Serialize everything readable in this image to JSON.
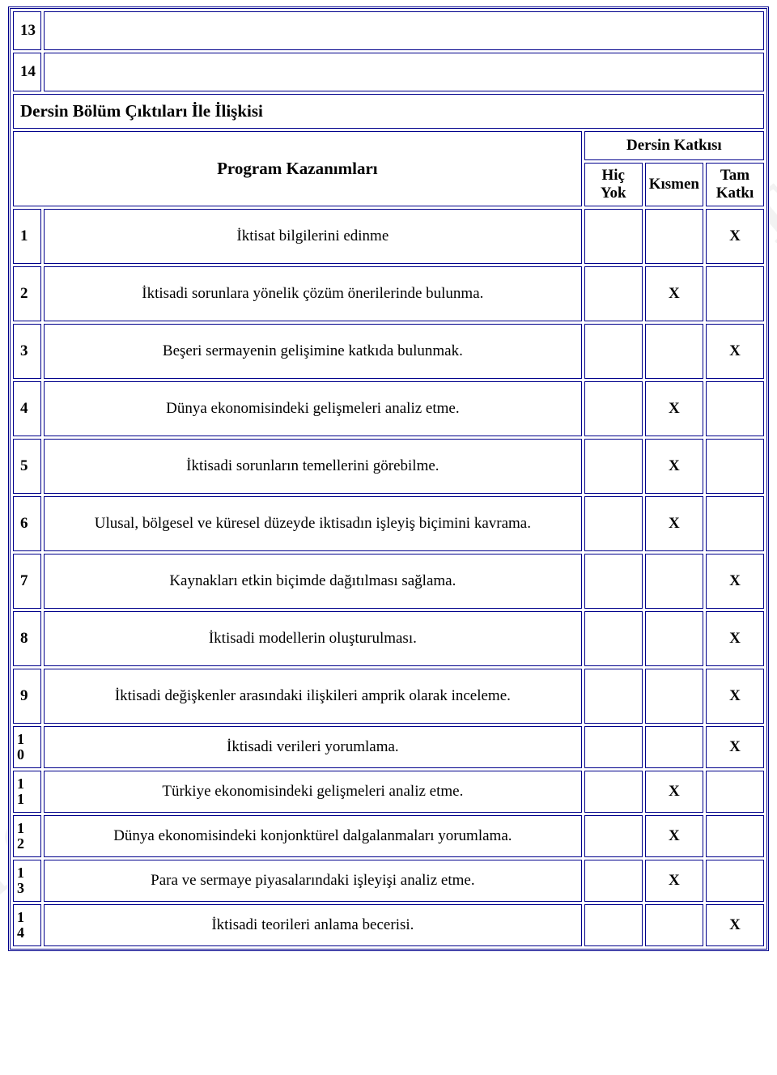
{
  "watermark_text": "AFYON KOCATEPE ÜNİVERSİTESİ",
  "top_rows": [
    "13",
    "14"
  ],
  "section_title": "Dersin Bölüm Çıktıları İle İlişkisi",
  "headers": {
    "program": "Program Kazanımları",
    "contribution": "Dersin Katkısı",
    "none": "Hiç Yok",
    "partial": "Kısmen",
    "full": "Tam Katkı"
  },
  "marker": "X",
  "rows": [
    {
      "num": "1",
      "desc": "İktisat bilgilerini edinme",
      "none": "",
      "partial": "",
      "full": "X"
    },
    {
      "num": "2",
      "desc": "İktisadi sorunlara yönelik çözüm önerilerinde bulunma.",
      "none": "",
      "partial": "X",
      "full": ""
    },
    {
      "num": "3",
      "desc": "Beşeri sermayenin gelişimine katkıda bulunmak.",
      "none": "",
      "partial": "",
      "full": "X"
    },
    {
      "num": "4",
      "desc": "Dünya ekonomisindeki gelişmeleri analiz etme.",
      "none": "",
      "partial": "X",
      "full": ""
    },
    {
      "num": "5",
      "desc": "İktisadi sorunların temellerini görebilme.",
      "none": "",
      "partial": "X",
      "full": ""
    },
    {
      "num": "6",
      "desc": "Ulusal, bölgesel ve küresel düzeyde iktisadın işleyiş biçimini kavrama.",
      "none": "",
      "partial": "X",
      "full": ""
    },
    {
      "num": "7",
      "desc": "Kaynakları etkin biçimde dağıtılması sağlama.",
      "none": "",
      "partial": "",
      "full": "X"
    },
    {
      "num": "8",
      "desc": "İktisadi modellerin oluşturulması.",
      "none": "",
      "partial": "",
      "full": "X"
    },
    {
      "num": "9",
      "desc": "İktisadi değişkenler arasındaki ilişkileri amprik olarak inceleme.",
      "none": "",
      "partial": "",
      "full": "X"
    },
    {
      "num": "10",
      "desc": "İktisadi verileri yorumlama.",
      "none": "",
      "partial": "",
      "full": "X"
    },
    {
      "num": "11",
      "desc": "Türkiye ekonomisindeki gelişmeleri analiz etme.",
      "none": "",
      "partial": "X",
      "full": ""
    },
    {
      "num": "12",
      "desc": "Dünya ekonomisindeki konjonktürel dalgalanmaları yorumlama.",
      "none": "",
      "partial": "X",
      "full": ""
    },
    {
      "num": "13",
      "desc": "Para ve sermaye piyasalarındaki işleyişi analiz etme.",
      "none": "",
      "partial": "X",
      "full": ""
    },
    {
      "num": "14",
      "desc": "İktisadi teorileri anlama becerisi.",
      "none": "",
      "partial": "",
      "full": "X"
    }
  ]
}
